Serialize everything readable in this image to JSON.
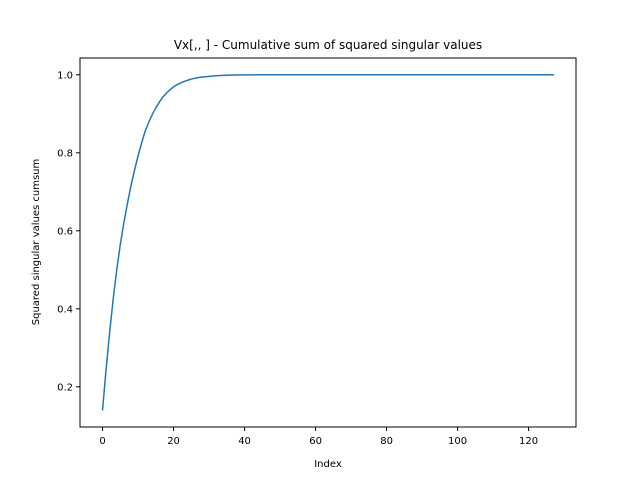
{
  "chart_data": {
    "type": "line",
    "title": "Vx[,, ] - Cumulative sum of squared singular values",
    "xlabel": "Index",
    "ylabel": "Squared singular values cumsum",
    "xlim": [
      -6.35,
      133.35
    ],
    "ylim": [
      0.097,
      1.043
    ],
    "xticks": [
      0,
      20,
      40,
      60,
      80,
      100,
      120
    ],
    "yticks": [
      0.2,
      0.4,
      0.6,
      0.8,
      1.0
    ],
    "xtick_labels": [
      "0",
      "20",
      "40",
      "60",
      "80",
      "100",
      "120"
    ],
    "ytick_labels": [
      "0.2",
      "0.4",
      "0.6",
      "0.8",
      "1.0"
    ],
    "grid": false,
    "line_color": "#1f77b4",
    "series": [
      {
        "x": [
          0,
          1,
          2,
          3,
          4,
          5,
          6,
          7,
          8,
          9,
          10,
          11,
          12,
          13,
          14,
          15,
          16,
          17,
          18,
          19,
          20,
          21,
          22,
          23,
          24,
          25,
          26,
          27,
          28,
          29,
          30,
          32,
          34,
          36,
          38,
          40,
          44,
          48,
          55,
          60,
          70,
          80,
          90,
          100,
          110,
          120,
          127
        ],
        "y": [
          0.141,
          0.245,
          0.34,
          0.425,
          0.5,
          0.565,
          0.62,
          0.67,
          0.715,
          0.755,
          0.792,
          0.825,
          0.855,
          0.878,
          0.898,
          0.915,
          0.93,
          0.943,
          0.953,
          0.962,
          0.969,
          0.975,
          0.979,
          0.983,
          0.986,
          0.989,
          0.991,
          0.993,
          0.994,
          0.995,
          0.996,
          0.9975,
          0.9985,
          0.9991,
          0.9995,
          0.9997,
          0.9999,
          1.0,
          1.0,
          1.0,
          1.0,
          1.0,
          1.0,
          1.0,
          1.0,
          1.0,
          1.0
        ]
      }
    ]
  }
}
